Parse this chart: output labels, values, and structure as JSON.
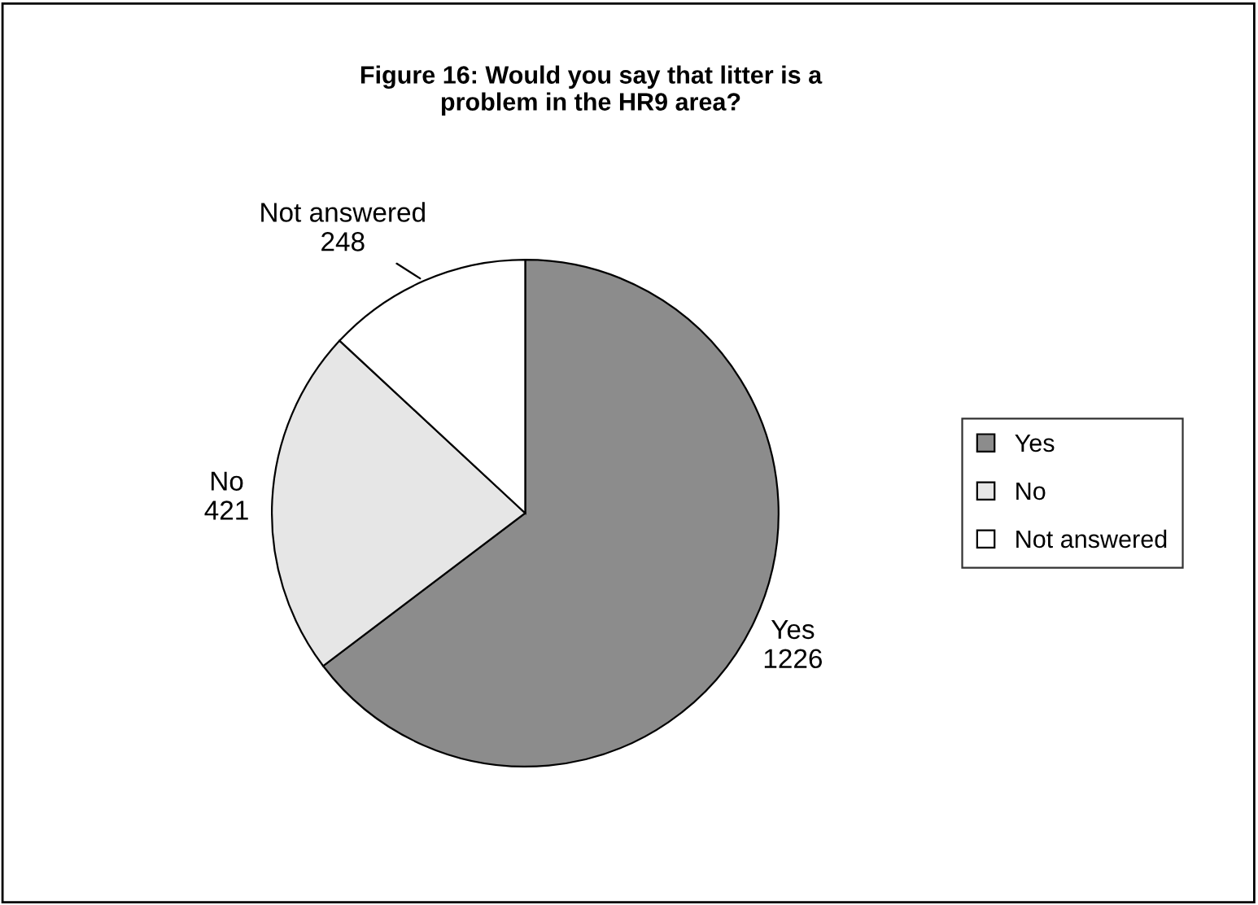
{
  "chart_data": {
    "type": "pie",
    "title": "Figure 16: Would you say that litter is a problem in the HR9 area?",
    "categories": [
      "Yes",
      "No",
      "Not answered"
    ],
    "values": [
      1226,
      421,
      248
    ],
    "colors": [
      "#8c8c8c",
      "#e6e6e6",
      "#ffffff"
    ],
    "data_labels": true,
    "legend": "right"
  }
}
